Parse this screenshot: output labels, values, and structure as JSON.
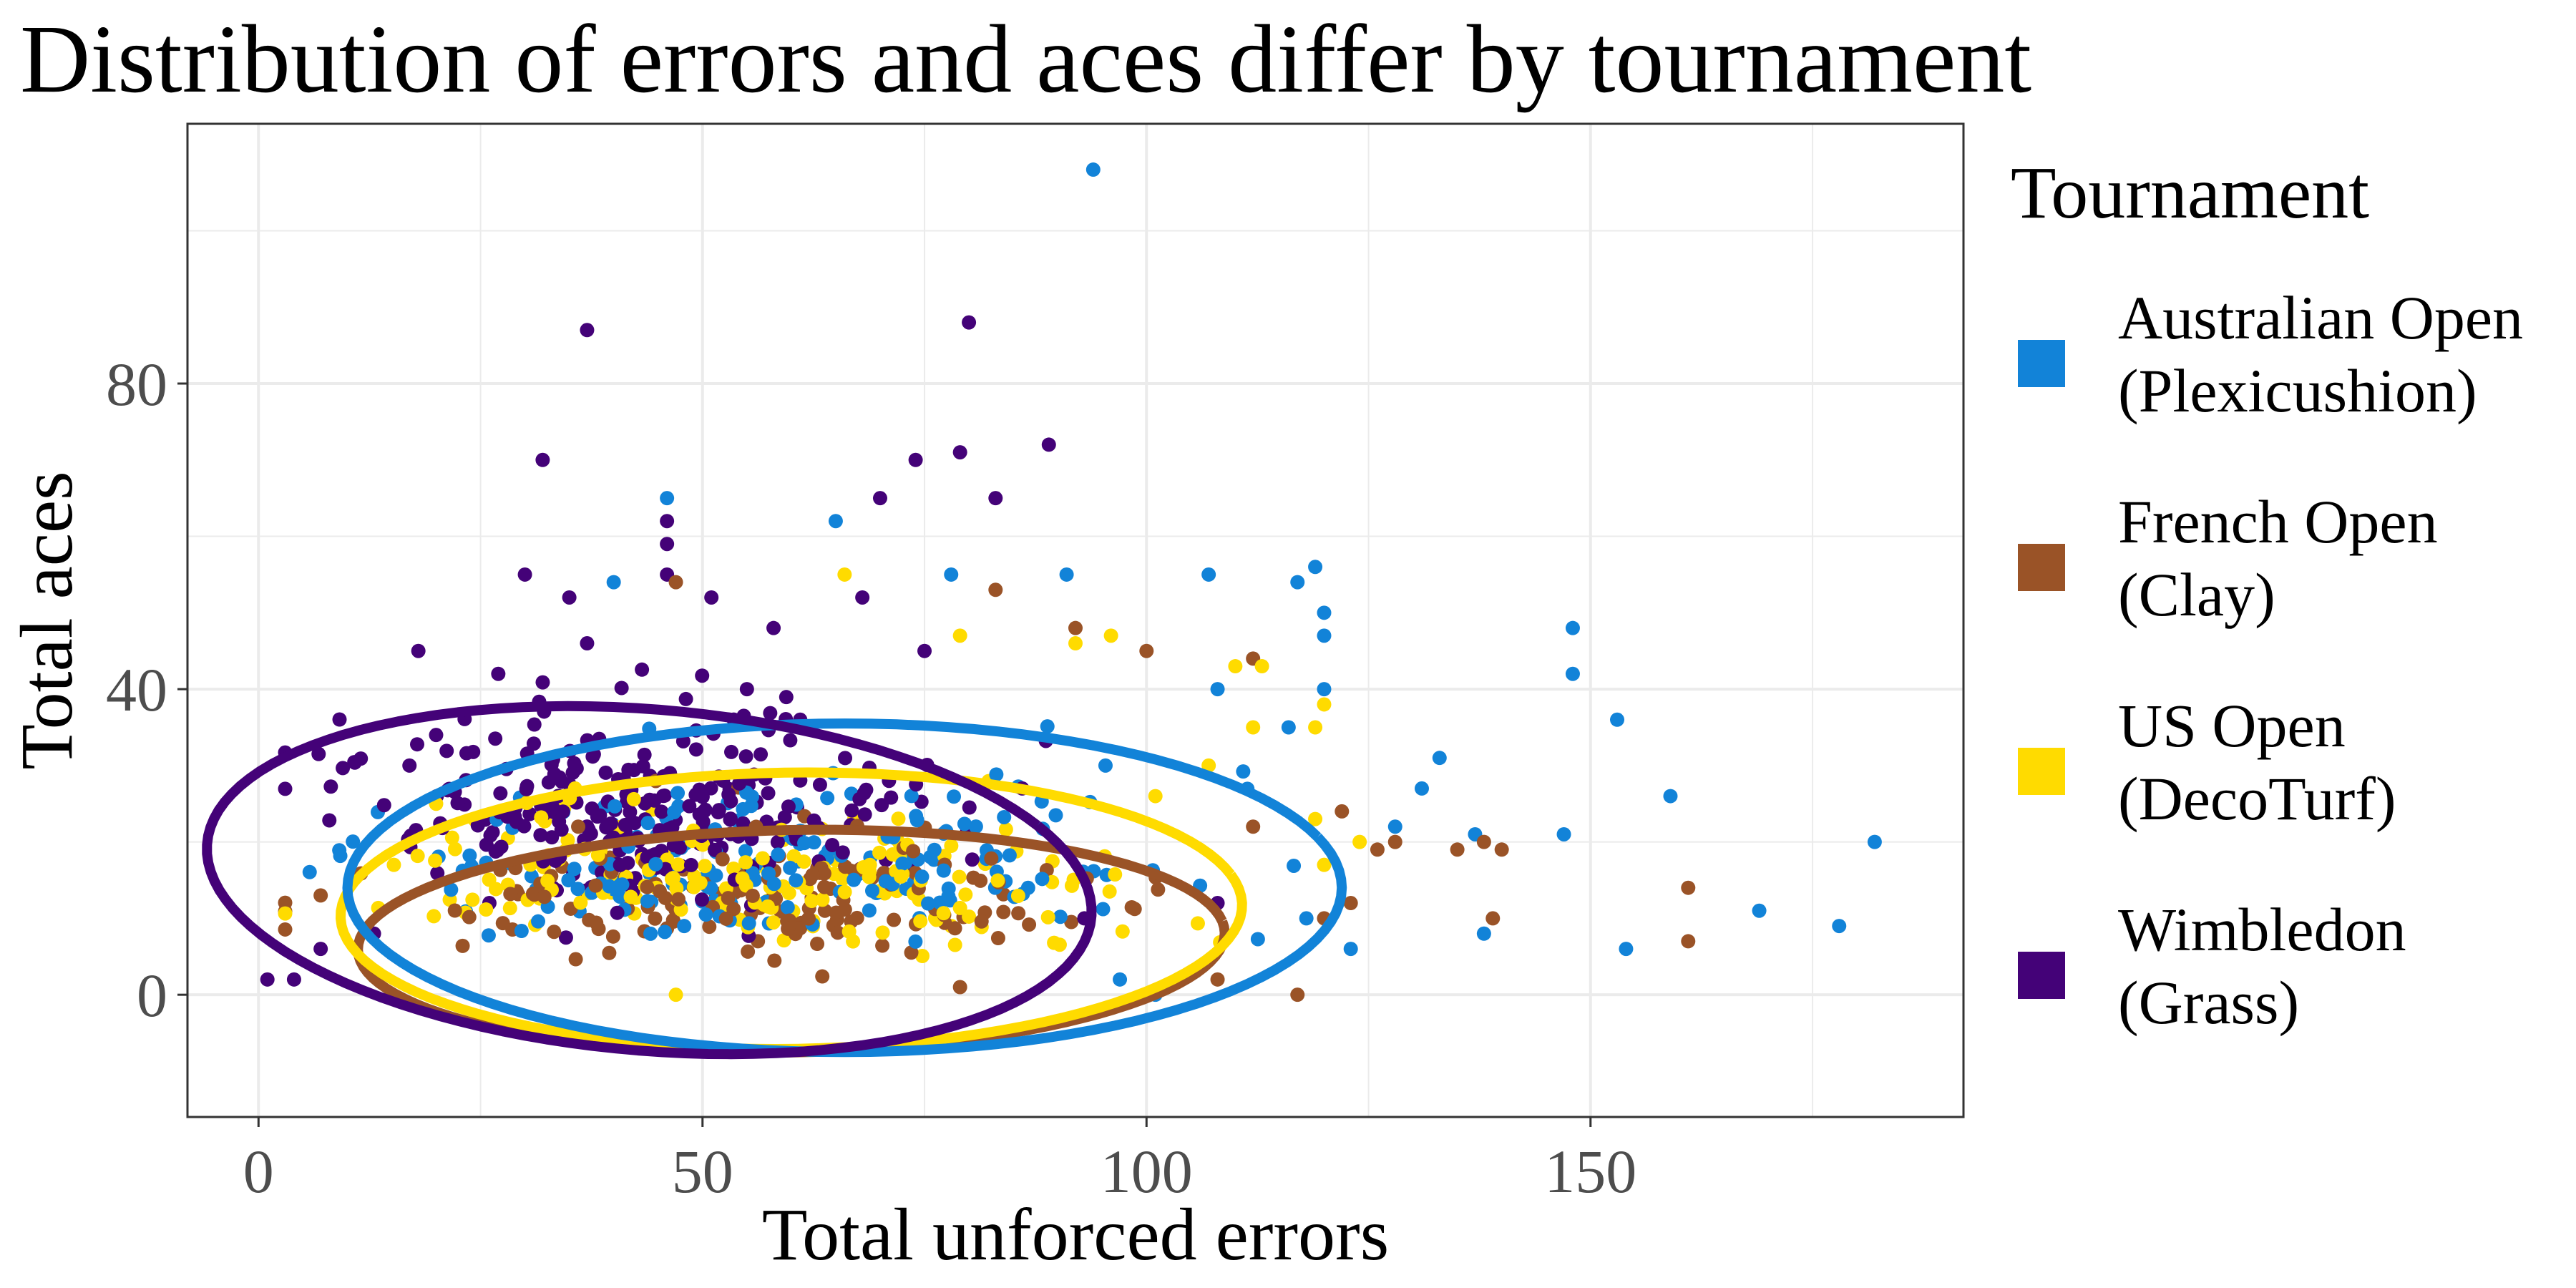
{
  "title": "Distribution of errors and aces differ by tournament",
  "chart_data": {
    "type": "scatter",
    "xlabel": "Total unforced errors",
    "ylabel": "Total aces",
    "xlim": [
      -8,
      192
    ],
    "ylim": [
      -16,
      114
    ],
    "x_ticks": [
      0,
      50,
      100,
      150
    ],
    "y_ticks": [
      0,
      40,
      80
    ],
    "grid": true,
    "legend_title": "Tournament",
    "legend_position": "right",
    "series": [
      {
        "name": "Australian Open (Plexicushion)",
        "legend_lines": [
          "Australian Open",
          "(Plexicushion)"
        ],
        "color": "#1283d8",
        "ellipse": {
          "cx": 66,
          "cy": 14,
          "rx": 56,
          "ry": 21.5,
          "angle_deg": 18
        },
        "cloud": {
          "n": 190,
          "mx": 60,
          "my": 12,
          "sx": 22,
          "sy": 8,
          "seed": 11
        },
        "points": [
          [
            94,
            108
          ],
          [
            46,
            65
          ],
          [
            65,
            62
          ],
          [
            40,
            54
          ],
          [
            78,
            55
          ],
          [
            91,
            55
          ],
          [
            107,
            55
          ],
          [
            117,
            54
          ],
          [
            119,
            56
          ],
          [
            120,
            50
          ],
          [
            120,
            47
          ],
          [
            148,
            48
          ],
          [
            148,
            42
          ],
          [
            153,
            36
          ],
          [
            159,
            26
          ],
          [
            133,
            31
          ],
          [
            137,
            21
          ],
          [
            138,
            8
          ],
          [
            147,
            21
          ],
          [
            154,
            6
          ],
          [
            169,
            11
          ],
          [
            178,
            9
          ],
          [
            182,
            20
          ],
          [
            128,
            22
          ],
          [
            131,
            27
          ],
          [
            120,
            40
          ],
          [
            116,
            35
          ],
          [
            108,
            40
          ],
          [
            118,
            10
          ],
          [
            123,
            6
          ],
          [
            97,
            2
          ],
          [
            101,
            0
          ]
        ]
      },
      {
        "name": "French Open (Clay)",
        "legend_lines": [
          "French Open",
          "(Clay)"
        ],
        "color": "#9a5327",
        "ellipse": {
          "cx": 60,
          "cy": 7,
          "rx": 49,
          "ry": 14.5,
          "angle_deg": 8
        },
        "cloud": {
          "n": 150,
          "mx": 55,
          "my": 8,
          "sx": 21,
          "sy": 6,
          "seed": 23
        },
        "points": [
          [
            83,
            53
          ],
          [
            100,
            45
          ],
          [
            112,
            22
          ],
          [
            122,
            24
          ],
          [
            126,
            19
          ],
          [
            128,
            20
          ],
          [
            135,
            19
          ],
          [
            138,
            20
          ],
          [
            140,
            19
          ],
          [
            139,
            10
          ],
          [
            161,
            14
          ],
          [
            161,
            7
          ],
          [
            117,
            0
          ],
          [
            112,
            44
          ],
          [
            92,
            48
          ],
          [
            47,
            54
          ],
          [
            36,
            22
          ],
          [
            120,
            10
          ],
          [
            123,
            12
          ],
          [
            108,
            2
          ],
          [
            79,
            1
          ],
          [
            7,
            13
          ]
        ]
      },
      {
        "name": "US Open (DecoTurf)",
        "legend_lines": [
          "US Open",
          "(DecoTurf)"
        ],
        "color": "#ffdb00",
        "ellipse": {
          "cx": 60,
          "cy": 11,
          "rx": 51,
          "ry": 18,
          "angle_deg": 14
        },
        "cloud": {
          "n": 170,
          "mx": 58,
          "my": 10,
          "sx": 21,
          "sy": 7,
          "seed": 37
        },
        "points": [
          [
            66,
            55
          ],
          [
            79,
            47
          ],
          [
            92,
            46
          ],
          [
            96,
            47
          ],
          [
            110,
            43
          ],
          [
            113,
            43
          ],
          [
            120,
            38
          ],
          [
            119,
            35
          ],
          [
            124,
            20
          ],
          [
            119,
            23
          ],
          [
            20,
            25
          ],
          [
            107,
            30
          ],
          [
            112,
            35
          ],
          [
            120,
            17
          ],
          [
            33,
            31
          ],
          [
            78,
            9
          ],
          [
            47,
            0
          ],
          [
            101,
            26
          ]
        ]
      },
      {
        "name": "Wimbledon (Grass)",
        "legend_lines": [
          "Wimbledon",
          "(Grass)"
        ],
        "color": "#440278",
        "ellipse": {
          "cx": 44,
          "cy": 15,
          "rx": 47.5,
          "ry": 23.5,
          "angle_deg": 23
        },
        "cloud": {
          "n": 260,
          "mx": 42,
          "my": 18,
          "sx": 17,
          "sy": 10,
          "seed": 53
        },
        "points": [
          [
            37,
            87
          ],
          [
            80,
            88
          ],
          [
            32,
            70
          ],
          [
            74,
            70
          ],
          [
            79,
            71
          ],
          [
            89,
            72
          ],
          [
            30,
            55
          ],
          [
            83,
            65
          ],
          [
            70,
            65
          ],
          [
            46,
            62
          ],
          [
            46,
            59
          ],
          [
            46,
            55
          ],
          [
            35,
            52
          ],
          [
            51,
            52
          ],
          [
            18,
            45
          ],
          [
            37,
            46
          ],
          [
            20,
            34
          ],
          [
            17,
            30
          ],
          [
            1,
            2
          ],
          [
            4,
            2
          ],
          [
            7,
            6
          ],
          [
            13,
            8
          ],
          [
            55,
            40
          ],
          [
            27,
            42
          ],
          [
            58,
            48
          ],
          [
            68,
            52
          ],
          [
            61,
            36
          ],
          [
            71,
            28
          ],
          [
            93,
            10
          ],
          [
            108,
            12
          ],
          [
            86,
            27
          ],
          [
            75,
            45
          ],
          [
            26,
            12
          ]
        ]
      }
    ]
  }
}
